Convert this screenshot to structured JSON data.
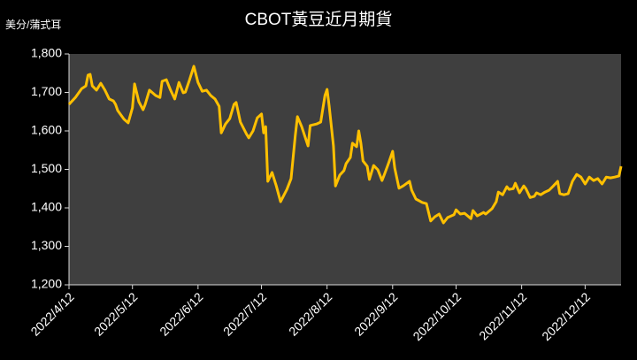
{
  "chart_data": {
    "type": "line",
    "title": "CBOT黃豆近月期貨",
    "ylabel": "美分/蒲式耳",
    "x": [
      "2022/4/12",
      "2022/4/15",
      "2022/4/18",
      "2022/4/20",
      "2022/4/21",
      "2022/4/22",
      "2022/4/23",
      "2022/4/25",
      "2022/4/27",
      "2022/4/29",
      "2022/5/1",
      "2022/5/3",
      "2022/5/4",
      "2022/5/5",
      "2022/5/8",
      "2022/5/10",
      "2022/5/12",
      "2022/5/13",
      "2022/5/15",
      "2022/5/17",
      "2022/5/18",
      "2022/5/20",
      "2022/5/23",
      "2022/5/25",
      "2022/5/26",
      "2022/5/28",
      "2022/5/30",
      "2022/6/1",
      "2022/6/3",
      "2022/6/5",
      "2022/6/6",
      "2022/6/8",
      "2022/6/10",
      "2022/6/12",
      "2022/6/14",
      "2022/6/16",
      "2022/6/18",
      "2022/6/20",
      "2022/6/22",
      "2022/6/23",
      "2022/6/25",
      "2022/6/27",
      "2022/6/29",
      "2022/6/30",
      "2022/7/2",
      "2022/7/5",
      "2022/7/6",
      "2022/7/8",
      "2022/7/10",
      "2022/7/12",
      "2022/7/13",
      "2022/7/14",
      "2022/7/15",
      "2022/7/17",
      "2022/7/19",
      "2022/7/21",
      "2022/7/24",
      "2022/7/26",
      "2022/7/28",
      "2022/7/29",
      "2022/7/31",
      "2022/8/3",
      "2022/8/4",
      "2022/8/7",
      "2022/8/9",
      "2022/8/11",
      "2022/8/12",
      "2022/8/13",
      "2022/8/15",
      "2022/8/16",
      "2022/8/18",
      "2022/8/20",
      "2022/8/21",
      "2022/8/23",
      "2022/8/24",
      "2022/8/26",
      "2022/8/27",
      "2022/8/28",
      "2022/8/29",
      "2022/8/31",
      "2022/9/1",
      "2022/9/3",
      "2022/9/5",
      "2022/9/7",
      "2022/9/8",
      "2022/9/10",
      "2022/9/12",
      "2022/9/13",
      "2022/9/15",
      "2022/9/17",
      "2022/9/20",
      "2022/9/21",
      "2022/9/23",
      "2022/9/26",
      "2022/9/28",
      "2022/9/30",
      "2022/10/2",
      "2022/10/4",
      "2022/10/6",
      "2022/10/8",
      "2022/10/11",
      "2022/10/12",
      "2022/10/14",
      "2022/10/16",
      "2022/10/19",
      "2022/10/20",
      "2022/10/22",
      "2022/10/25",
      "2022/10/26",
      "2022/10/29",
      "2022/10/31",
      "2022/11/1",
      "2022/11/3",
      "2022/11/5",
      "2022/11/6",
      "2022/11/8",
      "2022/11/9",
      "2022/11/11",
      "2022/11/13",
      "2022/11/14",
      "2022/11/16",
      "2022/11/18",
      "2022/11/19",
      "2022/11/21",
      "2022/11/23",
      "2022/11/25",
      "2022/11/27",
      "2022/11/29",
      "2022/11/30",
      "2022/12/2",
      "2022/12/4",
      "2022/12/6",
      "2022/12/8",
      "2022/12/10",
      "2022/12/12",
      "2022/12/14",
      "2022/12/16",
      "2022/12/18",
      "2022/12/20",
      "2022/12/22",
      "2022/12/24",
      "2022/12/26",
      "2022/12/28",
      "2022/12/29"
    ],
    "series": [
      {
        "name": "CBOT黃豆近月期貨",
        "color": "#ffc000",
        "values": [
          1669,
          1687,
          1710,
          1717,
          1745,
          1747,
          1717,
          1706,
          1724,
          1706,
          1683,
          1678,
          1669,
          1653,
          1630,
          1621,
          1660,
          1722,
          1676,
          1655,
          1669,
          1706,
          1692,
          1687,
          1729,
          1733,
          1706,
          1683,
          1726,
          1699,
          1701,
          1733,
          1768,
          1726,
          1703,
          1706,
          1692,
          1683,
          1664,
          1595,
          1618,
          1632,
          1669,
          1674,
          1623,
          1591,
          1582,
          1600,
          1634,
          1644,
          1595,
          1611,
          1469,
          1492,
          1457,
          1416,
          1448,
          1476,
          1589,
          1637,
          1611,
          1561,
          1614,
          1618,
          1623,
          1692,
          1708,
          1664,
          1561,
          1457,
          1485,
          1497,
          1515,
          1531,
          1568,
          1559,
          1600,
          1568,
          1522,
          1508,
          1474,
          1510,
          1499,
          1471,
          1485,
          1515,
          1547,
          1503,
          1451,
          1457,
          1469,
          1446,
          1423,
          1414,
          1411,
          1366,
          1377,
          1384,
          1361,
          1375,
          1382,
          1395,
          1384,
          1386,
          1372,
          1393,
          1379,
          1388,
          1384,
          1398,
          1416,
          1441,
          1434,
          1455,
          1448,
          1450,
          1464,
          1439,
          1457,
          1450,
          1427,
          1430,
          1439,
          1434,
          1441,
          1446,
          1457,
          1469,
          1437,
          1434,
          1437,
          1469,
          1487,
          1480,
          1462,
          1480,
          1471,
          1476,
          1462,
          1480,
          1478,
          1480,
          1483,
          1508
        ]
      }
    ],
    "xlim": [
      "2022/4/12",
      "2022/12/29"
    ],
    "xticks": [
      "2022/4/12",
      "2022/5/12",
      "2022/6/12",
      "2022/7/12",
      "2022/8/12",
      "2022/9/12",
      "2022/10/12",
      "2022/11/12",
      "2022/12/12"
    ],
    "ylim": [
      1200,
      1800
    ],
    "yticks": [
      {
        "value": 1200,
        "label": "1,200"
      },
      {
        "value": 1300,
        "label": "1,300"
      },
      {
        "value": 1400,
        "label": "1,400"
      },
      {
        "value": 1500,
        "label": "1,500"
      },
      {
        "value": 1600,
        "label": "1,600"
      },
      {
        "value": 1700,
        "label": "1,700"
      },
      {
        "value": 1800,
        "label": "1,800"
      }
    ],
    "grid": false
  }
}
